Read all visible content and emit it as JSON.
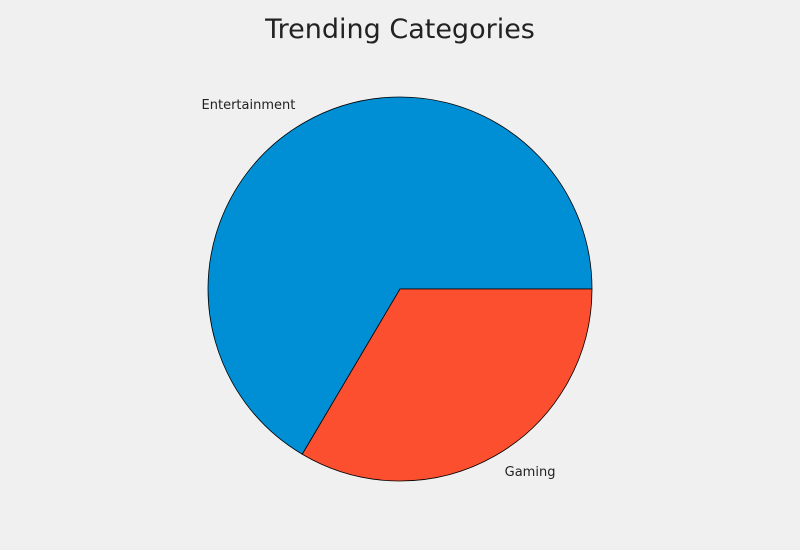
{
  "chart_data": {
    "type": "pie",
    "title": "Trending Categories",
    "categories": [
      "Entertainment",
      "Gaming"
    ],
    "values": [
      66.5,
      33.5
    ],
    "colors": [
      "#008fd5",
      "#fc4f30"
    ],
    "start_angle_deg": 0,
    "direction": "counterclockwise",
    "edge_color": "#000000",
    "legend": "none"
  }
}
